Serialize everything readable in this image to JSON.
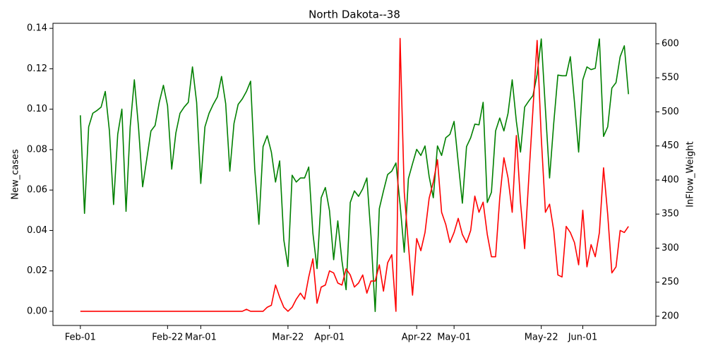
{
  "chart_data": {
    "type": "line",
    "title": "North Dakota--38",
    "y_label": "New_cases",
    "y2_label": "InFlow_Weight",
    "categories": [
      "Feb-01",
      null,
      null,
      null,
      null,
      null,
      null,
      null,
      null,
      null,
      null,
      null,
      null,
      null,
      null,
      null,
      null,
      null,
      null,
      null,
      null,
      "Feb-22",
      null,
      null,
      null,
      null,
      null,
      null,
      null,
      "Mar-01",
      null,
      null,
      null,
      null,
      null,
      null,
      null,
      null,
      null,
      null,
      null,
      null,
      null,
      null,
      null,
      null,
      null,
      null,
      null,
      null,
      "Mar-22",
      null,
      null,
      null,
      null,
      null,
      null,
      null,
      null,
      null,
      "Apr-01",
      null,
      null,
      null,
      null,
      null,
      null,
      null,
      null,
      null,
      null,
      null,
      null,
      null,
      null,
      null,
      null,
      null,
      null,
      null,
      null,
      "Apr-22",
      null,
      null,
      null,
      null,
      null,
      null,
      null,
      null,
      "May-01",
      null,
      null,
      null,
      null,
      null,
      null,
      null,
      null,
      null,
      null,
      null,
      null,
      null,
      null,
      null,
      null,
      null,
      null,
      null,
      null,
      "May-22",
      null,
      null,
      null,
      null,
      null,
      null,
      null,
      null,
      null,
      "Jun-01",
      null,
      null,
      null,
      null,
      null,
      null,
      null,
      null,
      null,
      null,
      null
    ],
    "ylim": [
      -0.007,
      0.1425
    ],
    "yticks": [
      {
        "value": 0,
        "label": "0.00"
      },
      {
        "value": 0.02,
        "label": "0.02"
      },
      {
        "value": 0.04,
        "label": "0.04"
      },
      {
        "value": 0.06,
        "label": "0.06"
      },
      {
        "value": 0.08,
        "label": "0.08"
      },
      {
        "value": 0.1,
        "label": "0.10"
      },
      {
        "value": 0.12,
        "label": "0.12"
      },
      {
        "value": 0.14,
        "label": "0.14"
      }
    ],
    "y2lim": [
      186.5,
      630
    ],
    "y2ticks": [
      200,
      250,
      300,
      350,
      400,
      450,
      500,
      550,
      600
    ],
    "series": [
      {
        "color": "#ff0000",
        "axis": "y",
        "values": [
          0,
          0,
          0,
          0,
          0,
          0,
          0,
          0,
          0,
          0,
          0,
          0,
          0,
          0,
          0,
          0,
          0,
          0,
          0,
          0,
          0,
          0,
          0,
          0,
          0,
          0,
          0,
          0,
          0,
          0,
          0,
          0,
          0,
          0,
          0,
          0,
          0,
          0,
          0,
          0,
          0.001,
          0,
          0,
          0,
          0,
          0.002,
          0.003,
          0.013,
          0.007,
          0.002,
          0,
          0.002,
          0.006,
          0.009,
          0.006,
          0.017,
          0.026,
          0.004,
          0.012,
          0.013,
          0.02,
          0.019,
          0.014,
          0.013,
          0.021,
          0.018,
          0.012,
          0.014,
          0.018,
          0.009,
          0.015,
          0.015,
          0.023,
          0.01,
          0.024,
          0.028,
          0,
          0.135,
          0.059,
          0.033,
          0.008,
          0.036,
          0.03,
          0.039,
          0.056,
          0.064,
          0.075,
          0.049,
          0.043,
          0.034,
          0.039,
          0.046,
          0.038,
          0.034,
          0.04,
          0.057,
          0.049,
          0.054,
          0.038,
          0.027,
          0.027,
          0.056,
          0.076,
          0.066,
          0.049,
          0.087,
          0.054,
          0.031,
          0.066,
          0.1,
          0.134,
          0.086,
          0.049,
          0.053,
          0.04,
          0.018,
          0.017,
          0.042,
          0.039,
          0.034,
          0.023,
          0.05,
          0.022,
          0.033,
          0.027,
          0.039,
          0.071,
          0.048,
          0.019,
          0.022,
          0.04,
          0.039,
          0.042
        ]
      },
      {
        "color": "#008000",
        "axis": "y2",
        "values": [
          495,
          351,
          478,
          498,
          502,
          507,
          530,
          472,
          364,
          467,
          504,
          354,
          478,
          547,
          478,
          390,
          431,
          472,
          480,
          514,
          539,
          509,
          416,
          469,
          498,
          507,
          514,
          566,
          514,
          395,
          478,
          498,
          511,
          522,
          552,
          512,
          413,
          483,
          511,
          519,
          530,
          545,
          416,
          335,
          449,
          465,
          441,
          397,
          428,
          312,
          273,
          407,
          397,
          403,
          403,
          419,
          322,
          270,
          374,
          389,
          355,
          283,
          340,
          281,
          239,
          367,
          384,
          376,
          387,
          403,
          317,
          207,
          358,
          384,
          408,
          413,
          425,
          364,
          294,
          402,
          424,
          445,
          436,
          450,
          405,
          374,
          450,
          436,
          462,
          467,
          486,
          426,
          366,
          449,
          462,
          482,
          481,
          514,
          367,
          382,
          472,
          491,
          472,
          498,
          547,
          486,
          441,
          507,
          516,
          524,
          555,
          607,
          504,
          403,
          483,
          554,
          553,
          553,
          581,
          514,
          441,
          547,
          566,
          562,
          564,
          607,
          464,
          478,
          535,
          543,
          581,
          597,
          526
        ]
      }
    ]
  }
}
